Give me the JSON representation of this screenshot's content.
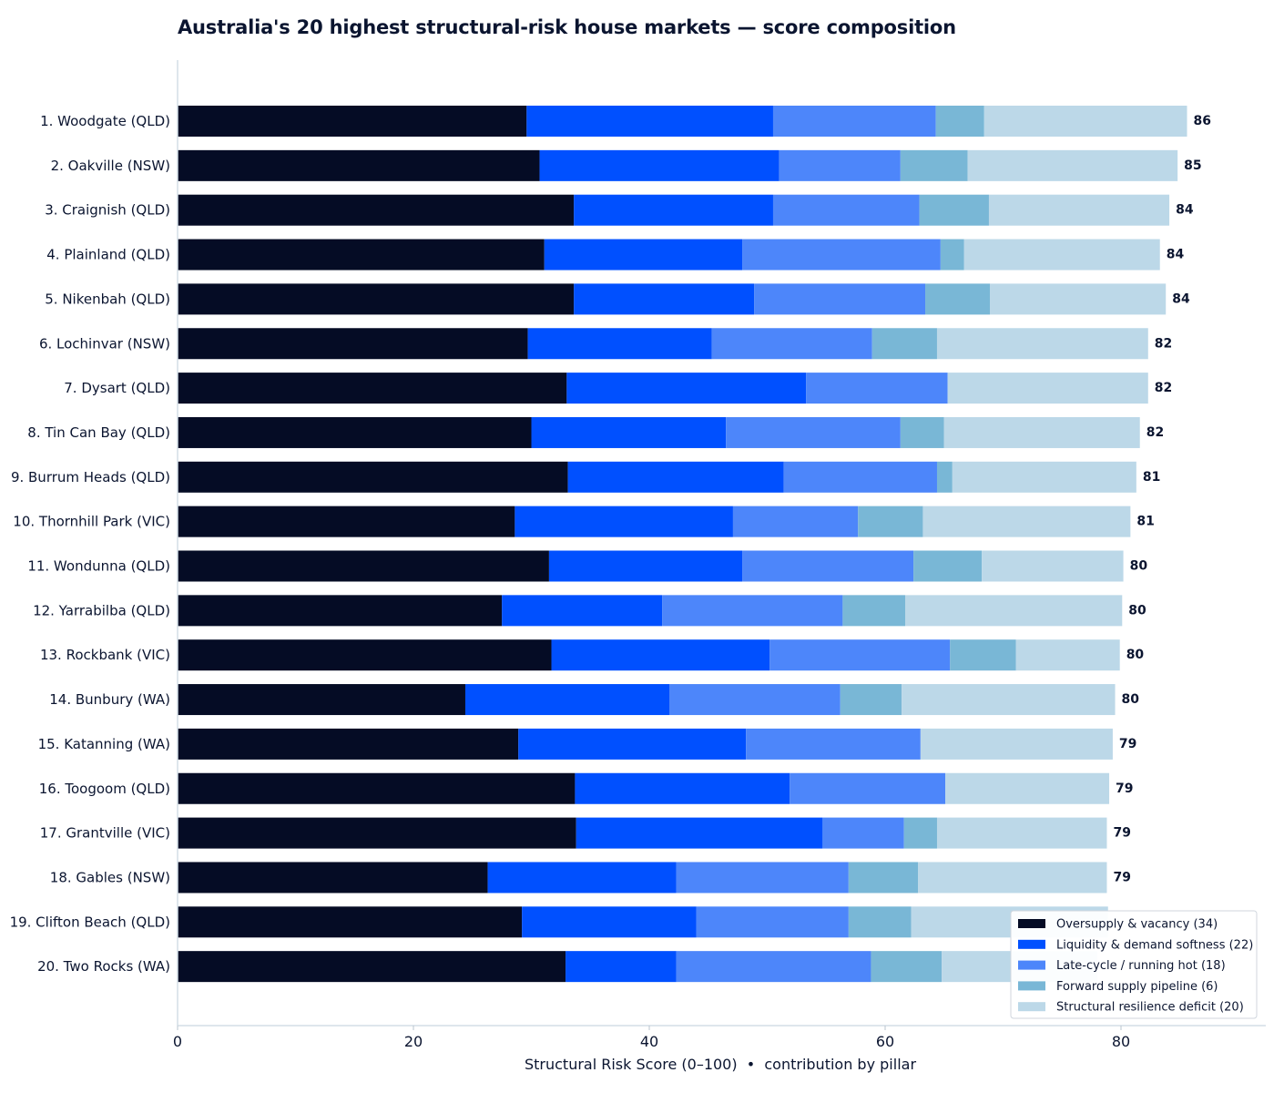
{
  "chart_data": {
    "type": "bar",
    "orientation": "horizontal",
    "stacked": true,
    "title": "Australia's 20 highest structural-risk house markets — score composition",
    "xlabel": "Structural Risk Score (0–100)  •  contribution by pillar",
    "ylabel": "",
    "xlim": [
      0,
      92
    ],
    "xticks": [
      0,
      20,
      40,
      60,
      80
    ],
    "grid": false,
    "legend_position": "bottom-right",
    "categories": [
      "1. Woodgate (QLD)",
      "2. Oakville (NSW)",
      "3. Craignish (QLD)",
      "4. Plainland (QLD)",
      "5. Nikenbah (QLD)",
      "6. Lochinvar (NSW)",
      "7. Dysart (QLD)",
      "8. Tin Can Bay (QLD)",
      "9. Burrum Heads (QLD)",
      "10. Thornhill Park (VIC)",
      "11. Wondunna (QLD)",
      "12. Yarrabilba (QLD)",
      "13. Rockbank (VIC)",
      "14. Bunbury (WA)",
      "15. Katanning (WA)",
      "16. Toogoom (QLD)",
      "17. Grantville (VIC)",
      "18. Gables (NSW)",
      "19. Clifton Beach (QLD)",
      "20. Two Rocks (WA)"
    ],
    "totals": [
      "86",
      "85",
      "84",
      "84",
      "84",
      "82",
      "82",
      "82",
      "81",
      "81",
      "80",
      "80",
      "80",
      "80",
      "79",
      "79",
      "79",
      "79",
      "",
      ""
    ],
    "series": [
      {
        "name": "Oversupply & vacancy (34)",
        "color": "#050c25",
        "values": [
          29.6,
          30.7,
          33.6,
          31.1,
          33.6,
          29.7,
          33.0,
          30.0,
          33.1,
          28.6,
          31.5,
          27.5,
          31.7,
          24.4,
          28.9,
          33.7,
          33.8,
          26.3,
          29.2,
          32.9
        ]
      },
      {
        "name": "Liquidity & demand softness (22)",
        "color": "#0050ff",
        "values": [
          20.9,
          20.3,
          16.9,
          16.8,
          15.3,
          15.6,
          20.3,
          16.5,
          18.3,
          18.5,
          16.4,
          13.6,
          18.5,
          17.3,
          19.3,
          18.2,
          20.9,
          16.0,
          14.8,
          9.4
        ]
      },
      {
        "name": "Late-cycle / running hot (18)",
        "color": "#4d86fa",
        "values": [
          13.8,
          10.3,
          12.4,
          16.8,
          14.5,
          13.6,
          12.0,
          14.8,
          13.0,
          10.6,
          14.5,
          15.3,
          15.3,
          14.5,
          14.8,
          13.2,
          6.9,
          14.6,
          12.9,
          16.5
        ]
      },
      {
        "name": "Forward supply pipeline (6)",
        "color": "#79b7d6",
        "values": [
          4.1,
          5.7,
          5.9,
          2.0,
          5.5,
          5.5,
          0.0,
          3.7,
          1.3,
          5.5,
          5.8,
          5.3,
          5.6,
          5.2,
          0.0,
          0.0,
          2.8,
          5.9,
          5.3,
          6.0
        ]
      },
      {
        "name": "Structural resilience deficit (20)",
        "color": "#bcd8e8",
        "values": [
          17.2,
          17.8,
          15.3,
          16.6,
          14.9,
          17.9,
          17.0,
          16.6,
          15.6,
          17.6,
          12.0,
          18.4,
          8.8,
          18.1,
          16.3,
          13.9,
          14.4,
          16.0,
          16.7,
          13.2
        ]
      }
    ]
  }
}
